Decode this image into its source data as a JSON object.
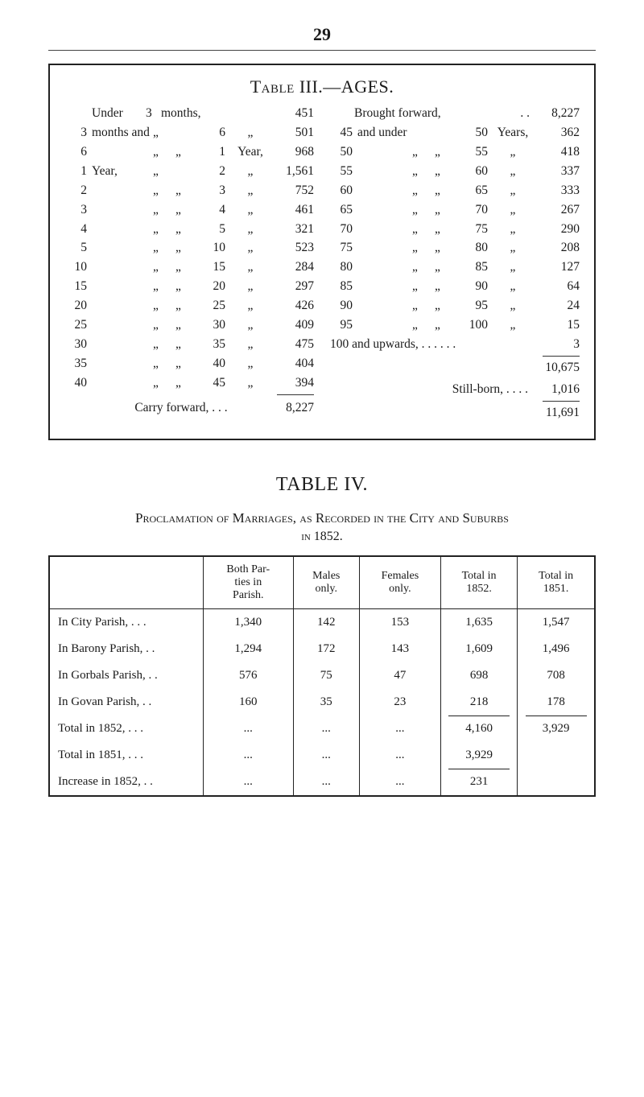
{
  "page_number": "29",
  "table3": {
    "title_prefix": "Table",
    "title_num": " III.—AGES.",
    "left": {
      "header": {
        "lead": "Under",
        "a": "3",
        "unit": "months,",
        "val": "451"
      },
      "rows": [
        {
          "c1": "3",
          "lead": "months and",
          "c2": "„",
          "c4": "6",
          "c5": "„",
          "val": "501"
        },
        {
          "c1": "6",
          "lead": "",
          "c2": "„",
          "c3": "„",
          "c4": "1",
          "c5": "Year,",
          "val": "968"
        },
        {
          "c1": "1",
          "lead": "Year,",
          "c2": "„",
          "c4": "2",
          "c5": "„",
          "val": "1,561"
        },
        {
          "c1": "2",
          "lead": "",
          "c2": "„",
          "c3": "„",
          "c4": "3",
          "c5": "„",
          "val": "752"
        },
        {
          "c1": "3",
          "lead": "",
          "c2": "„",
          "c3": "„",
          "c4": "4",
          "c5": "„",
          "val": "461"
        },
        {
          "c1": "4",
          "lead": "",
          "c2": "„",
          "c3": "„",
          "c4": "5",
          "c5": "„",
          "val": "321"
        },
        {
          "c1": "5",
          "lead": "",
          "c2": "„",
          "c3": "„",
          "c4": "10",
          "c5": "„",
          "val": "523"
        },
        {
          "c1": "10",
          "lead": "",
          "c2": "„",
          "c3": "„",
          "c4": "15",
          "c5": "„",
          "val": "284"
        },
        {
          "c1": "15",
          "lead": "",
          "c2": "„",
          "c3": "„",
          "c4": "20",
          "c5": "„",
          "val": "297"
        },
        {
          "c1": "20",
          "lead": "",
          "c2": "„",
          "c3": "„",
          "c4": "25",
          "c5": "„",
          "val": "426"
        },
        {
          "c1": "25",
          "lead": "",
          "c2": "„",
          "c3": "„",
          "c4": "30",
          "c5": "„",
          "val": "409"
        },
        {
          "c1": "30",
          "lead": "",
          "c2": "„",
          "c3": "„",
          "c4": "35",
          "c5": "„",
          "val": "475"
        },
        {
          "c1": "35",
          "lead": "",
          "c2": "„",
          "c3": "„",
          "c4": "40",
          "c5": "„",
          "val": "404"
        },
        {
          "c1": "40",
          "lead": "",
          "c2": "„",
          "c3": "„",
          "c4": "45",
          "c5": "„",
          "val": "394"
        }
      ],
      "carry_label": "Carry forward, . . .",
      "carry_val": "8,227"
    },
    "right": {
      "header": {
        "lead": "Brought forward,",
        "dots": ". .",
        "val": "8,227"
      },
      "rows": [
        {
          "c1": "45",
          "lead": "and under",
          "c4": "50",
          "c5": "Years,",
          "val": "362"
        },
        {
          "c1": "50",
          "c2": "„",
          "c3": "„",
          "c4": "55",
          "c5": "„",
          "val": "418"
        },
        {
          "c1": "55",
          "c2": "„",
          "c3": "„",
          "c4": "60",
          "c5": "„",
          "val": "337"
        },
        {
          "c1": "60",
          "c2": "„",
          "c3": "„",
          "c4": "65",
          "c5": "„",
          "val": "333"
        },
        {
          "c1": "65",
          "c2": "„",
          "c3": "„",
          "c4": "70",
          "c5": "„",
          "val": "267"
        },
        {
          "c1": "70",
          "c2": "„",
          "c3": "„",
          "c4": "75",
          "c5": "„",
          "val": "290"
        },
        {
          "c1": "75",
          "c2": "„",
          "c3": "„",
          "c4": "80",
          "c5": "„",
          "val": "208"
        },
        {
          "c1": "80",
          "c2": "„",
          "c3": "„",
          "c4": "85",
          "c5": "„",
          "val": "127"
        },
        {
          "c1": "85",
          "c2": "„",
          "c3": "„",
          "c4": "90",
          "c5": "„",
          "val": "64"
        },
        {
          "c1": "90",
          "c2": "„",
          "c3": "„",
          "c4": "95",
          "c5": "„",
          "val": "24"
        },
        {
          "c1": "95",
          "c2": "„",
          "c3": "„",
          "c4": "100",
          "c5": "„",
          "val": "15"
        }
      ],
      "upwards_label": "100 and upwards, . . . . . .",
      "upwards_val": "3",
      "subtotal": "10,675",
      "stillborn_label": "Still-born, . . . .",
      "stillborn_val": "1,016",
      "total": "11,691"
    }
  },
  "table4": {
    "heading": "TABLE IV.",
    "sub_line1_pre": "Proclamation of ",
    "sub_line1_m": "Marriages, as Recorded in the City and Suburbs",
    "sub_line1_full": "Proclamation of Marriages, as Recorded in the City and Suburbs",
    "sub_line2": "in 1852.",
    "columns": [
      "",
      "Both Par-\nties in\nParish.",
      "Males\nonly.",
      "Females\nonly.",
      "Total in\n1852.",
      "Total in\n1851."
    ],
    "rows": [
      {
        "label": "In City Parish, . . .",
        "c": [
          "1,340",
          "142",
          "153",
          "1,635",
          "1,547"
        ]
      },
      {
        "label": "In Barony Parish, . .",
        "c": [
          "1,294",
          "172",
          "143",
          "1,609",
          "1,496"
        ]
      },
      {
        "label": "In Gorbals Parish, . .",
        "c": [
          "576",
          "75",
          "47",
          "698",
          "708"
        ]
      },
      {
        "label": "In Govan Parish, . .",
        "c": [
          "160",
          "35",
          "23",
          "218",
          "178"
        ]
      },
      {
        "label": "Total in 1852, . . .",
        "c": [
          "...",
          "...",
          "...",
          "4,160",
          "3,929"
        ],
        "topline_cols": [
          4,
          5
        ]
      },
      {
        "label": "Total in 1851, . . .",
        "c": [
          "...",
          "...",
          "...",
          "3,929",
          ""
        ]
      },
      {
        "label": "Increase in 1852, . .",
        "c": [
          "...",
          "...",
          "...",
          "231",
          ""
        ],
        "topline_cols": [
          4
        ]
      }
    ]
  }
}
